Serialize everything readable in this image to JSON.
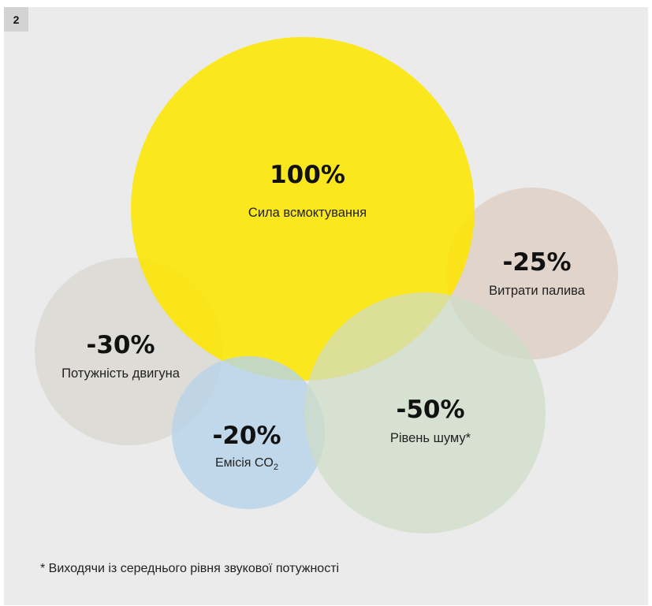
{
  "figure_number": "2",
  "colors": {
    "suction": "#fde600",
    "fuel": "#dfd0c6",
    "power": "#dcd9d4",
    "emission": "#b6d3ea",
    "noise": "#cfdcc6",
    "background": "#ebebeb"
  },
  "bubbles": [
    {
      "id": "suction",
      "value": "100%",
      "label": "Сила всмоктування"
    },
    {
      "id": "fuel",
      "value": "-25%",
      "label": "Витрати палива"
    },
    {
      "id": "power",
      "value": "-30%",
      "label": "Потужність двигуна"
    },
    {
      "id": "emission",
      "value": "-20%",
      "label": "Емісія CO",
      "label_sub": "2"
    },
    {
      "id": "noise",
      "value": "-50%",
      "label": "Рівень шуму*"
    }
  ],
  "footnote": "* Виходячи із середнього рівня звукової потужності"
}
